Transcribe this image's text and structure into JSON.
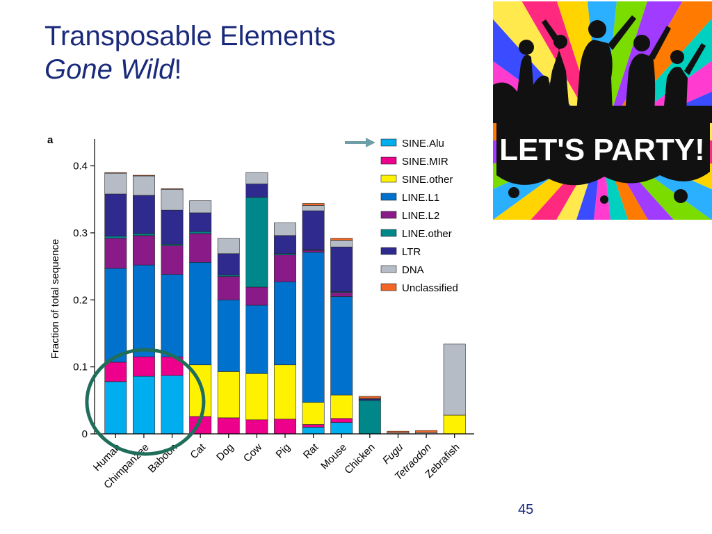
{
  "slide": {
    "title_line1": "Transposable Elements",
    "title_line2_italic": "Gone Wild",
    "title_line2_suffix": "!",
    "page_number": "45",
    "party_image_text": "LET'S PARTY!"
  },
  "chart_data": {
    "type": "bar",
    "stacked": true,
    "panel_label": "a",
    "title": "",
    "xlabel": "",
    "ylabel": "Fraction of total sequence",
    "ylim": [
      0,
      0.44
    ],
    "yticks": [
      "0",
      "0.1",
      "0.2",
      "0.3",
      "0.4"
    ],
    "categories": [
      "Human",
      "Chimpanzee",
      "Baboon",
      "Cat",
      "Dog",
      "Cow",
      "Pig",
      "Rat",
      "Mouse",
      "Chicken",
      "Fugu",
      "Tetraodon",
      "Zebrafish"
    ],
    "italic_categories": [
      "Fugu",
      "Tetraodon"
    ],
    "legend_position": "top-right",
    "highlight_circle": [
      "Human",
      "Chimpanzee",
      "Baboon"
    ],
    "arrow_points_to": "SINE.Alu",
    "series": [
      {
        "name": "SINE.Alu",
        "color": "#00aeef",
        "values": [
          0.078,
          0.086,
          0.087,
          0,
          0,
          0,
          0,
          0.01,
          0.017,
          0,
          0,
          0,
          0
        ]
      },
      {
        "name": "SINE.MIR",
        "color": "#ec008c",
        "values": [
          0.029,
          0.029,
          0.028,
          0.026,
          0.024,
          0.021,
          0.022,
          0.004,
          0.006,
          0,
          0,
          0,
          0
        ]
      },
      {
        "name": "SINE.other",
        "color": "#fff200",
        "values": [
          0,
          0,
          0,
          0.077,
          0.069,
          0.069,
          0.081,
          0.033,
          0.035,
          0,
          0,
          0,
          0.028
        ]
      },
      {
        "name": "LINE.L1",
        "color": "#0072ce",
        "values": [
          0.14,
          0.137,
          0.123,
          0.153,
          0.107,
          0.102,
          0.124,
          0.224,
          0.147,
          0,
          0,
          0,
          0
        ]
      },
      {
        "name": "LINE.L2",
        "color": "#8b1a89",
        "values": [
          0.045,
          0.044,
          0.043,
          0.043,
          0.035,
          0.027,
          0.04,
          0.003,
          0.006,
          0,
          0,
          0,
          0
        ]
      },
      {
        "name": "LINE.other",
        "color": "#00878a",
        "values": [
          0.003,
          0.003,
          0.002,
          0.003,
          0.002,
          0.134,
          0.002,
          0.001,
          0.001,
          0.05,
          0,
          0,
          0
        ]
      },
      {
        "name": "LTR",
        "color": "#2e2a8e",
        "values": [
          0.063,
          0.057,
          0.051,
          0.028,
          0.032,
          0.02,
          0.027,
          0.058,
          0.067,
          0.002,
          0,
          0,
          0
        ]
      },
      {
        "name": "DNA",
        "color": "#b6bcc6",
        "values": [
          0.031,
          0.029,
          0.031,
          0.018,
          0.023,
          0.017,
          0.019,
          0.008,
          0.01,
          0.001,
          0.002,
          0.002,
          0.106
        ]
      },
      {
        "name": "Unclassified",
        "color": "#f26522",
        "values": [
          0.001,
          0.001,
          0.001,
          0,
          0,
          0,
          0,
          0.003,
          0.003,
          0.003,
          0.002,
          0.003,
          0
        ]
      }
    ]
  }
}
